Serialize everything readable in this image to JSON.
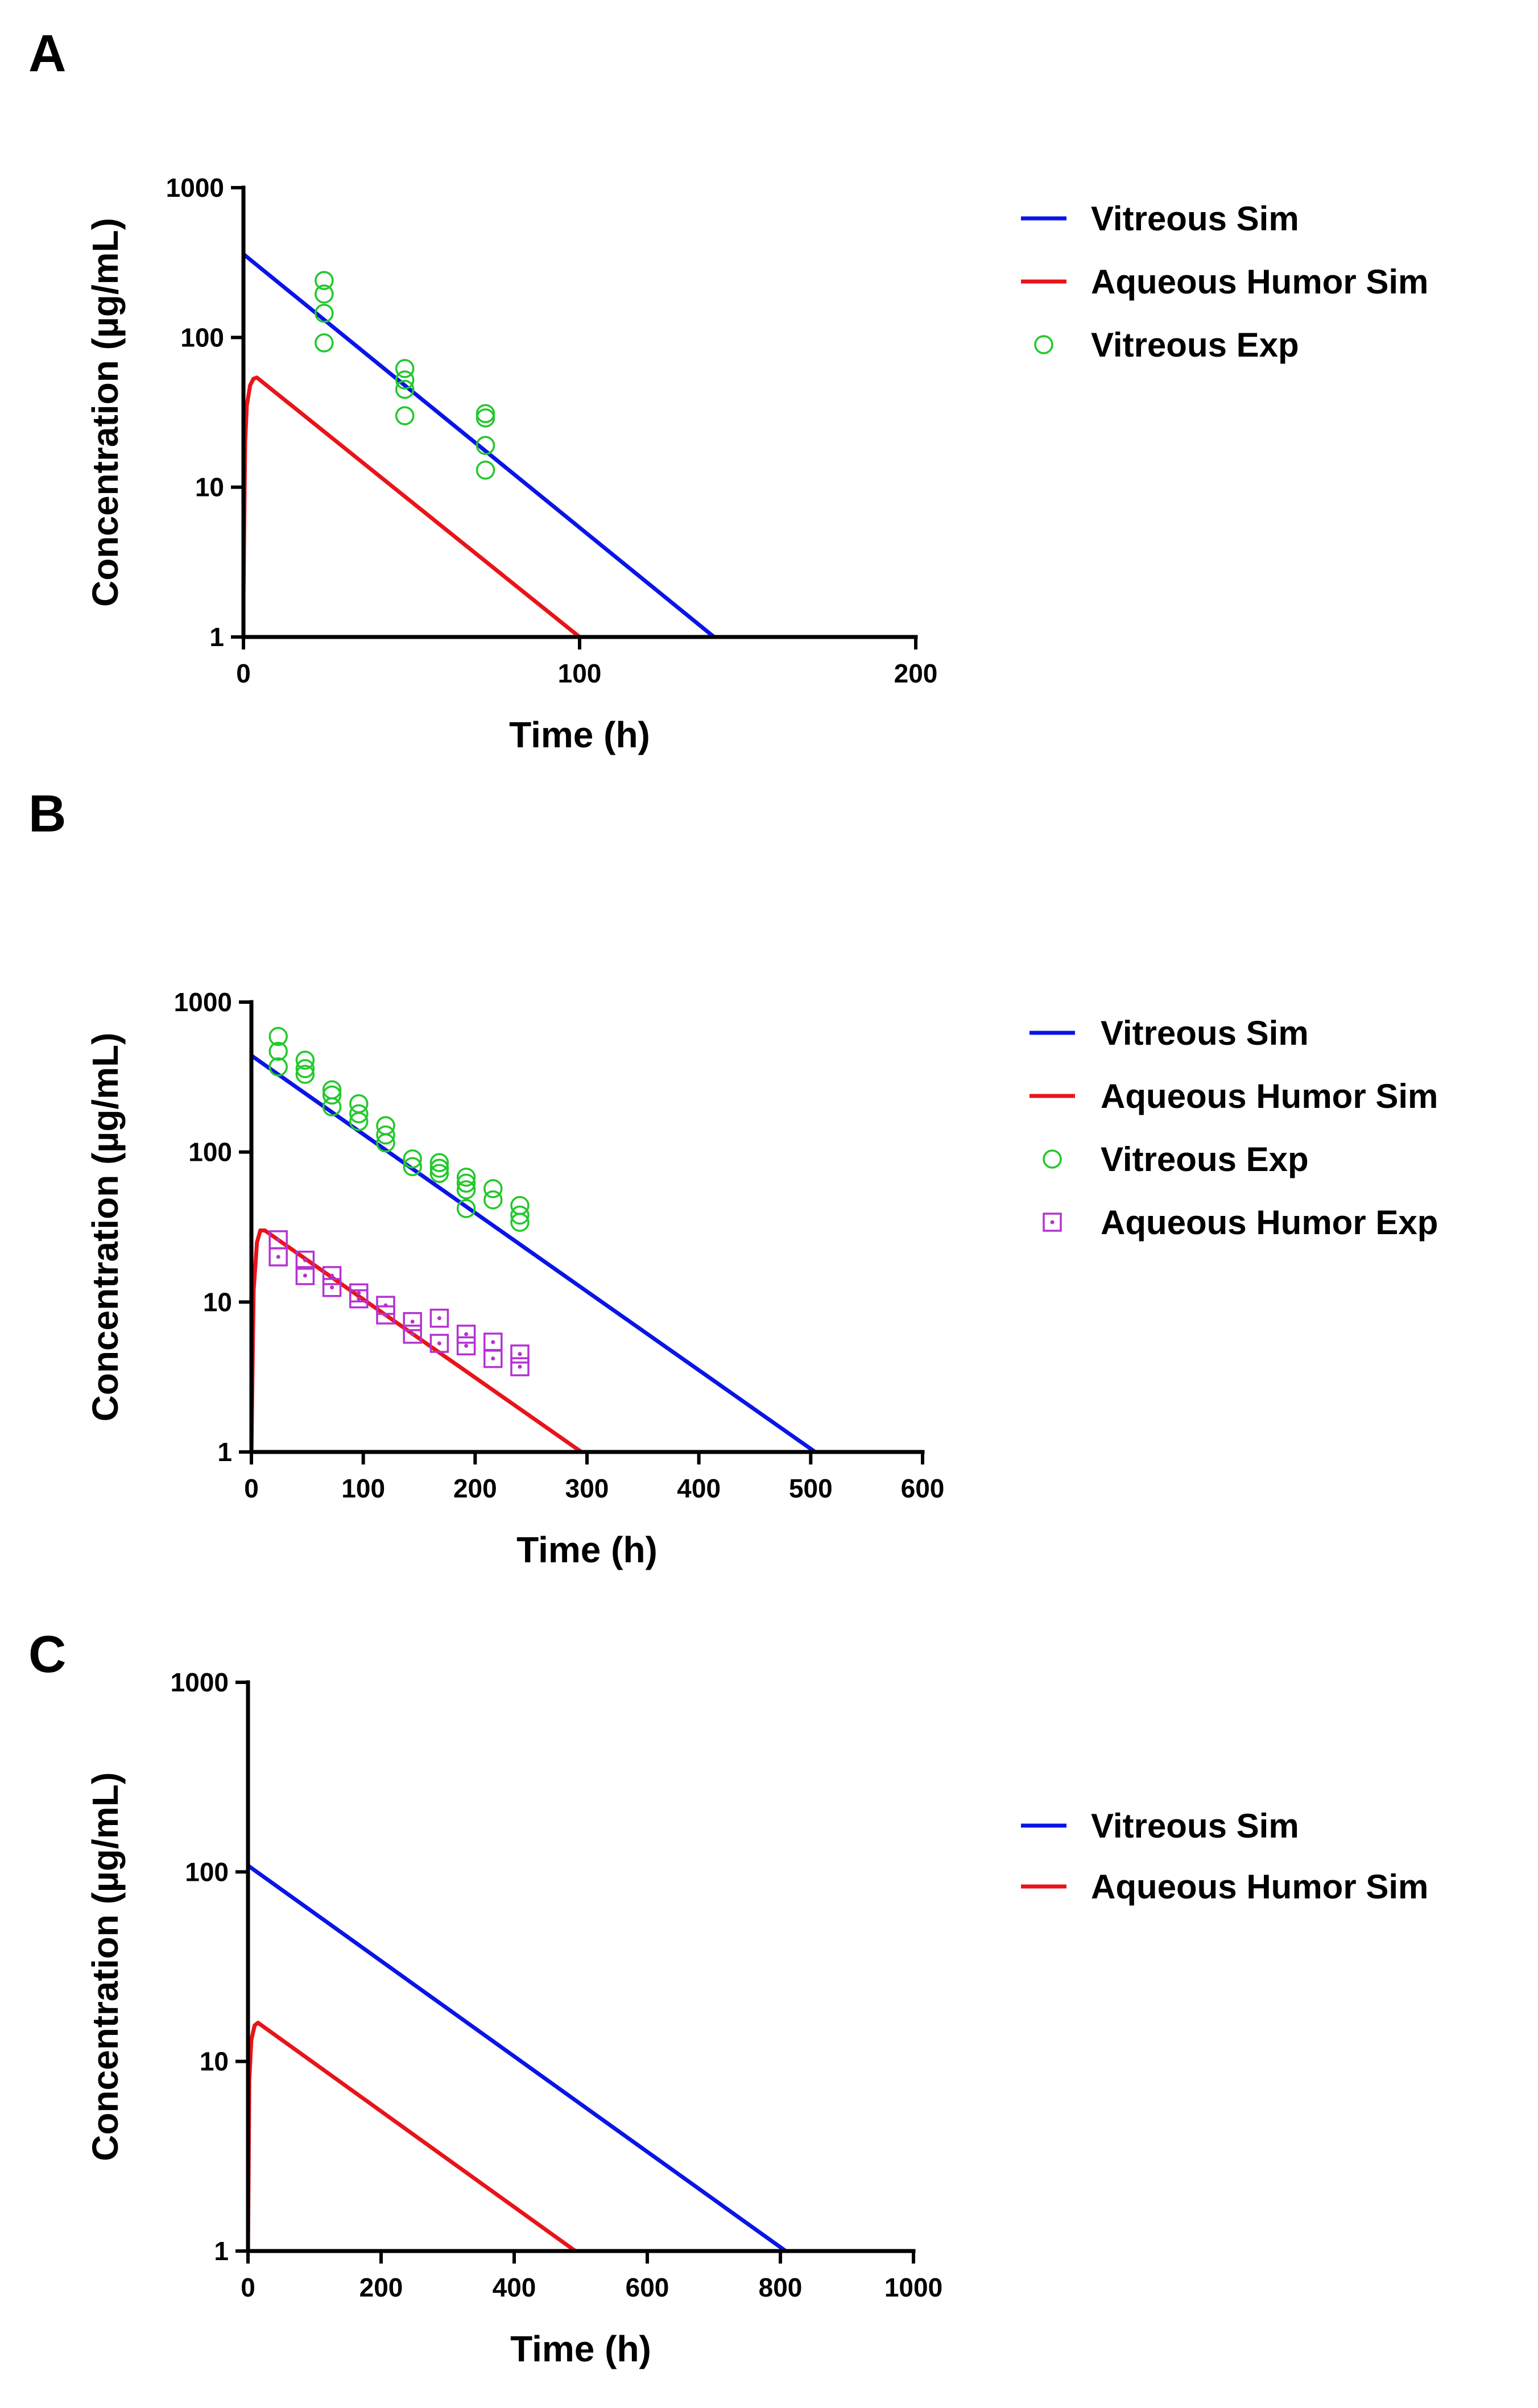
{
  "chart_data": [
    {
      "panel": "A",
      "type": "line",
      "title": "",
      "xlabel": "Time (h)",
      "ylabel": "Concentration (µg/mL)",
      "xlim": [
        0,
        200
      ],
      "ylim": [
        1,
        1000
      ],
      "yscale": "log",
      "xticks": [
        0,
        100,
        200
      ],
      "yticks": [
        1,
        10,
        100,
        1000
      ],
      "xtick_labels": [
        "0",
        "100",
        "200"
      ],
      "ytick_labels": [
        "1",
        "10",
        "100",
        "1000"
      ],
      "grid": false,
      "legend_position": "right",
      "series": [
        {
          "name": "Vitreous Sim",
          "kind": "line",
          "color": "#0a14e6",
          "x": [
            0,
            140
          ],
          "y": [
            360,
            1
          ]
        },
        {
          "name": "Aqueous Humor Sim",
          "kind": "line",
          "color": "#e8141a",
          "x": [
            0,
            0.5,
            1,
            2,
            3,
            4,
            100
          ],
          "y": [
            1.8,
            20,
            35,
            48,
            53,
            54,
            1
          ]
        },
        {
          "name": "Vitreous Exp",
          "kind": "scatter",
          "marker": "circle",
          "color": "#22c82a",
          "x": [
            24,
            24,
            24,
            24,
            48,
            48,
            48,
            48,
            72,
            72,
            72,
            72
          ],
          "y": [
            240,
            195,
            145,
            92,
            62,
            52,
            45,
            30,
            31,
            29,
            19,
            13
          ]
        }
      ]
    },
    {
      "panel": "B",
      "type": "line",
      "title": "",
      "xlabel": "Time (h)",
      "ylabel": "Concentration (µg/mL)",
      "xlim": [
        0,
        600
      ],
      "ylim": [
        1,
        1000
      ],
      "yscale": "log",
      "xticks": [
        0,
        100,
        200,
        300,
        400,
        500,
        600
      ],
      "yticks": [
        1,
        10,
        100,
        1000
      ],
      "xtick_labels": [
        "0",
        "100",
        "200",
        "300",
        "400",
        "500",
        "600"
      ],
      "ytick_labels": [
        "1",
        "10",
        "100",
        "1000"
      ],
      "grid": false,
      "legend_position": "right",
      "series": [
        {
          "name": "Vitreous Sim",
          "kind": "line",
          "color": "#0a14e6",
          "x": [
            0,
            504
          ],
          "y": [
            440,
            1
          ]
        },
        {
          "name": "Aqueous Humor Sim",
          "kind": "line",
          "color": "#e8141a",
          "x": [
            0,
            2,
            5,
            8,
            12,
            295
          ],
          "y": [
            1,
            12,
            25,
            30,
            30,
            1
          ]
        },
        {
          "name": "Vitreous Exp",
          "kind": "scatter",
          "marker": "circle",
          "color": "#22c82a",
          "x": [
            24,
            24,
            24,
            48,
            48,
            48,
            72,
            72,
            72,
            96,
            96,
            96,
            120,
            120,
            120,
            144,
            144,
            168,
            168,
            168,
            192,
            192,
            192,
            192,
            216,
            216,
            240,
            240,
            240
          ],
          "y": [
            590,
            470,
            370,
            410,
            360,
            330,
            260,
            240,
            200,
            210,
            180,
            160,
            150,
            130,
            115,
            90,
            80,
            85,
            78,
            72,
            68,
            62,
            56,
            42,
            57,
            48,
            44,
            38,
            34
          ]
        },
        {
          "name": "Aqueous Humor Exp",
          "kind": "scatter",
          "marker": "square-dot",
          "color": "#b432d2",
          "x": [
            24,
            24,
            48,
            48,
            72,
            72,
            96,
            96,
            120,
            120,
            144,
            144,
            168,
            168,
            192,
            192,
            216,
            216,
            240,
            240
          ],
          "y": [
            26,
            20,
            19,
            15,
            15,
            12.5,
            11.5,
            10.5,
            9.5,
            8.2,
            7.4,
            6.1,
            7.8,
            5.3,
            6.1,
            5.1,
            5.4,
            4.2,
            4.5,
            3.7
          ]
        }
      ]
    },
    {
      "panel": "C",
      "type": "line",
      "title": "",
      "xlabel": "Time (h)",
      "ylabel": "Concentration (µg/mL)",
      "xlim": [
        0,
        1000
      ],
      "ylim": [
        1,
        1000
      ],
      "yscale": "log",
      "xticks": [
        0,
        200,
        400,
        600,
        800,
        1000
      ],
      "yticks": [
        1,
        10,
        100,
        1000
      ],
      "xtick_labels": [
        "0",
        "200",
        "400",
        "600",
        "800",
        "1000"
      ],
      "ytick_labels": [
        "1",
        "10",
        "100",
        "1000"
      ],
      "grid": false,
      "legend_position": "right",
      "series": [
        {
          "name": "Vitreous Sim",
          "kind": "line",
          "color": "#0a14e6",
          "x": [
            0,
            808
          ],
          "y": [
            108,
            1
          ]
        },
        {
          "name": "Aqueous Humor Sim",
          "kind": "line",
          "color": "#e8141a",
          "x": [
            0,
            2,
            5,
            10,
            15,
            492
          ],
          "y": [
            1,
            8,
            13,
            15.5,
            16,
            1
          ]
        }
      ]
    }
  ]
}
